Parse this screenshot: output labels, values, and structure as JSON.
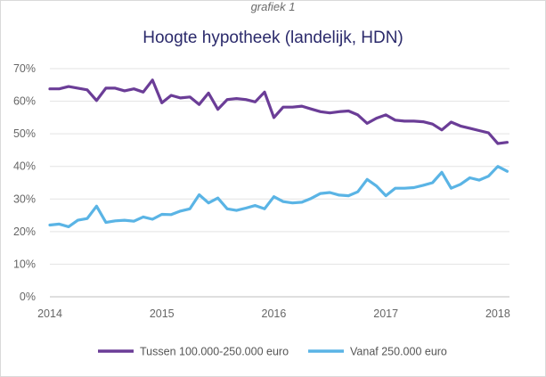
{
  "header": {
    "caption": "grafiek 1",
    "title": "Hoogte hypotheek (landelijk, HDN)"
  },
  "chart_data": {
    "type": "line",
    "title": "Hoogte hypotheek (landelijk, HDN)",
    "xlabel": "",
    "ylabel": "",
    "ylim": [
      0,
      70
    ],
    "y_ticks": [
      "0%",
      "10%",
      "20%",
      "30%",
      "40%",
      "50%",
      "60%",
      "70%"
    ],
    "y_tick_values": [
      0,
      10,
      20,
      30,
      40,
      50,
      60,
      70
    ],
    "x_ticks": [
      "2014",
      "2015",
      "2016",
      "2017",
      "2018"
    ],
    "x_tick_values": [
      2014,
      2015,
      2016,
      2017,
      2018
    ],
    "x_start": 2014,
    "x_step_months": 1,
    "grid": true,
    "legend_position": "bottom",
    "series": [
      {
        "name": "Tussen 100.000-250.000 euro",
        "color": "#6b3d97",
        "values": [
          63.8,
          63.8,
          64.5,
          64.0,
          63.5,
          60.2,
          64.0,
          64.0,
          63.2,
          63.8,
          62.8,
          66.5,
          59.5,
          61.8,
          61.0,
          61.3,
          59.0,
          62.5,
          57.5,
          60.5,
          60.8,
          60.5,
          59.8,
          62.8,
          55.0,
          58.2,
          58.2,
          58.5,
          57.6,
          56.8,
          56.4,
          56.8,
          57.0,
          55.8,
          53.2,
          54.8,
          55.8,
          54.2,
          53.9,
          53.9,
          53.7,
          53.0,
          51.2,
          53.6,
          52.4,
          51.7,
          51.0,
          50.3,
          47.0,
          47.4
        ]
      },
      {
        "name": "Vanaf 250.000 euro",
        "color": "#5ab4e5",
        "values": [
          22.0,
          22.3,
          21.5,
          23.5,
          24.0,
          27.8,
          22.8,
          23.3,
          23.5,
          23.2,
          24.5,
          23.8,
          25.3,
          25.2,
          26.3,
          27.0,
          31.3,
          28.8,
          30.3,
          27.0,
          26.5,
          27.2,
          28.0,
          27.0,
          30.7,
          29.2,
          28.8,
          29.0,
          30.2,
          31.7,
          32.0,
          31.2,
          31.0,
          32.2,
          36.0,
          34.0,
          31.0,
          33.3,
          33.3,
          33.5,
          34.2,
          35.0,
          38.2,
          33.3,
          34.5,
          36.5,
          35.8,
          37.0,
          40.0,
          38.5
        ]
      }
    ]
  }
}
